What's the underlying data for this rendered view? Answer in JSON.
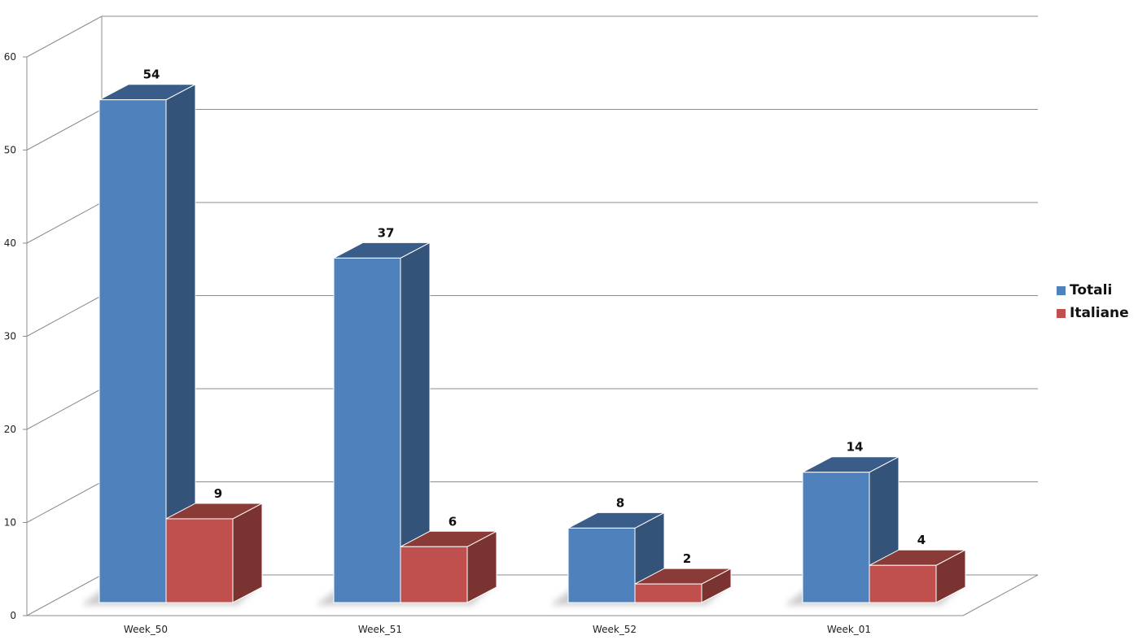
{
  "chart_data": {
    "type": "bar",
    "categories": [
      "Week_50",
      "Week_51",
      "Week_52",
      "Week_01"
    ],
    "series": [
      {
        "name": "Totali",
        "values": [
          54,
          37,
          8,
          14
        ],
        "color": "#4F81BD"
      },
      {
        "name": "Italiane",
        "values": [
          9,
          6,
          2,
          4
        ],
        "color": "#C0504D"
      }
    ],
    "ylim": [
      0,
      60
    ],
    "yticks": [
      0,
      10,
      20,
      30,
      40,
      50,
      60
    ],
    "grid": true,
    "legend_position": "right",
    "style": "3d-clustered-column",
    "data_labels": true
  }
}
